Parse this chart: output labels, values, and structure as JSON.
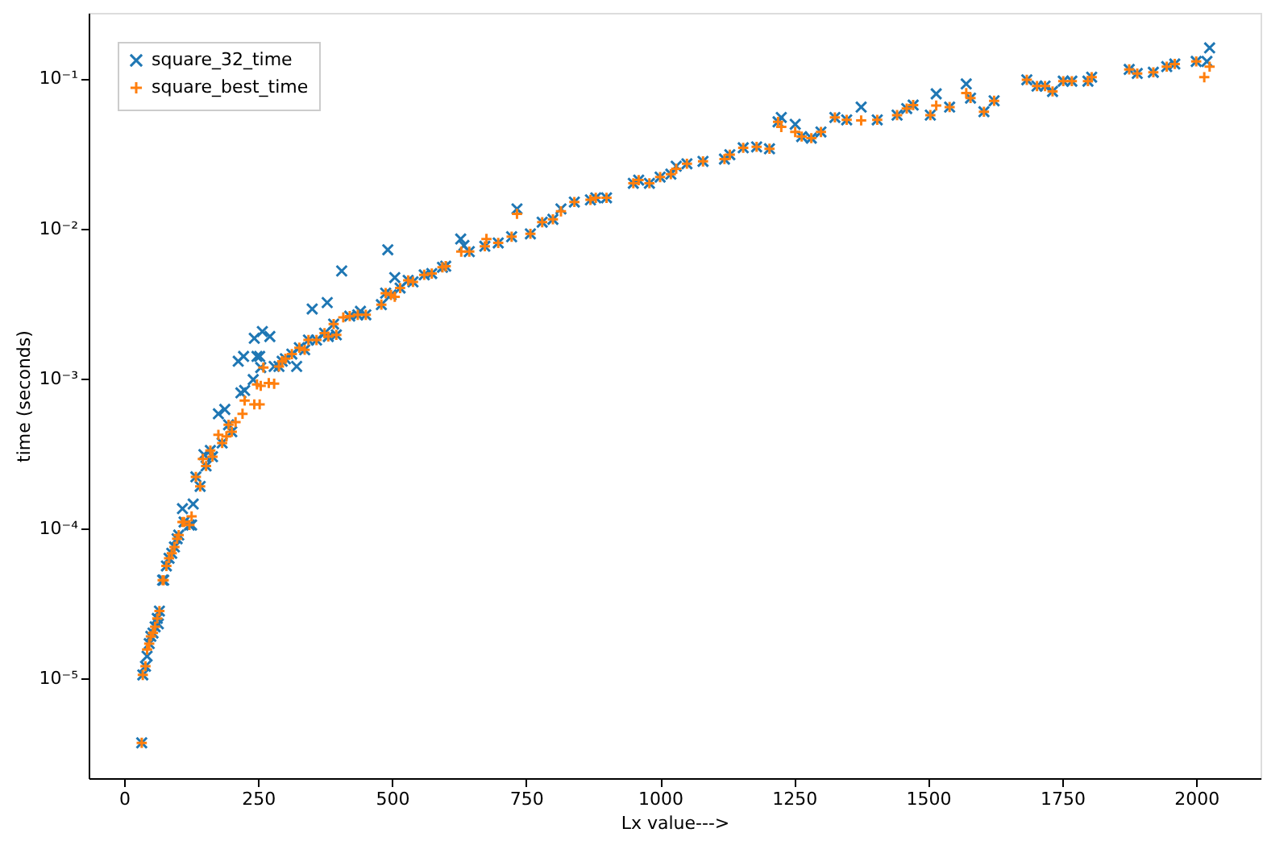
{
  "chart_data": {
    "type": "scatter",
    "xlabel": "Lx value--->",
    "ylabel": "time (seconds)",
    "log": "y",
    "grid": false,
    "legend": "top left",
    "xlim": [
      -66,
      2120
    ],
    "xticks": [
      0,
      250,
      500,
      750,
      1000,
      1250,
      1500,
      1750,
      2000
    ],
    "ylim": [
      2.15e-06,
      0.274
    ],
    "yticks": [
      {
        "value": 1e-05,
        "label": "10⁻⁵"
      },
      {
        "value": 0.0001,
        "label": "10⁻⁴"
      },
      {
        "value": 0.001,
        "label": "10⁻³"
      },
      {
        "value": 0.01,
        "label": "10⁻²"
      },
      {
        "value": 0.1,
        "label": "10⁻¹"
      }
    ],
    "series": [
      {
        "name": "square_32_time",
        "color": "#1f77b4",
        "marker": "x",
        "x": [
          33,
          35,
          40,
          43,
          47,
          50,
          54,
          58,
          62,
          64,
          66,
          72,
          74,
          79,
          84,
          89,
          94,
          99,
          102,
          109,
          112,
          122,
          126,
          129,
          134,
          142,
          149,
          153,
          161,
          165,
          176,
          183,
          188,
          195,
          201,
          213,
          218,
          223,
          225,
          241,
          243,
          248,
          253,
          255,
          258,
          272,
          280,
          289,
          295,
          301,
          313,
          322,
          327,
          337,
          344,
          351,
          359,
          374,
          379,
          381,
          391,
          396,
          406,
          421,
          436,
          441,
          451,
          480,
          488,
          492,
          498,
          505,
          515,
          530,
          539,
          560,
          574,
          594,
          600,
          628,
          634,
          644,
          673,
          698,
          723,
          733,
          758,
          780,
          800,
          815,
          840,
          870,
          880,
          900,
          950,
          960,
          980,
          1000,
          1020,
          1030,
          1050,
          1080,
          1120,
          1130,
          1155,
          1180,
          1204,
          1220,
          1226,
          1252,
          1264,
          1282,
          1300,
          1326,
          1348,
          1375,
          1405,
          1442,
          1460,
          1472,
          1504,
          1515,
          1540,
          1571,
          1579,
          1604,
          1623,
          1684,
          1703,
          1718,
          1732,
          1752,
          1768,
          1798,
          1805,
          1875,
          1890,
          1920,
          1945,
          1960,
          2000,
          2020,
          2025
        ],
        "values": [
          3.7e-06,
          1.05e-05,
          1.2e-05,
          1.4e-05,
          1.7e-05,
          1.9e-05,
          2e-05,
          2.2e-05,
          2.5e-05,
          2.3e-05,
          2.8e-05,
          4.5e-05,
          4.5e-05,
          5.6e-05,
          6.3e-05,
          6.8e-05,
          7.5e-05,
          8.5e-05,
          9e-05,
          0.000135,
          0.00011,
          0.000105,
          0.000105,
          0.000145,
          0.00022,
          0.00019,
          0.00031,
          0.00026,
          0.00033,
          0.0003,
          0.00058,
          0.00037,
          0.00062,
          0.00049,
          0.00044,
          0.0013,
          0.0008,
          0.0014,
          0.00083,
          0.00098,
          0.00185,
          0.0014,
          0.0014,
          0.00118,
          0.00205,
          0.0019,
          0.0012,
          0.0012,
          0.0013,
          0.00135,
          0.00145,
          0.0012,
          0.0016,
          0.00155,
          0.0018,
          0.0029,
          0.0018,
          0.002,
          0.0032,
          0.0019,
          0.0023,
          0.00195,
          0.0052,
          0.0026,
          0.00265,
          0.0028,
          0.00265,
          0.0031,
          0.0037,
          0.0072,
          0.0036,
          0.0047,
          0.004,
          0.0045,
          0.0044,
          0.0049,
          0.005,
          0.0055,
          0.0056,
          0.0085,
          0.0077,
          0.007,
          0.0076,
          0.008,
          0.0088,
          0.0135,
          0.0092,
          0.011,
          0.0115,
          0.0135,
          0.015,
          0.0155,
          0.016,
          0.016,
          0.02,
          0.021,
          0.02,
          0.022,
          0.023,
          0.026,
          0.027,
          0.028,
          0.029,
          0.031,
          0.0345,
          0.035,
          0.034,
          0.0514,
          0.055,
          0.0495,
          0.041,
          0.04,
          0.044,
          0.055,
          0.053,
          0.0645,
          0.053,
          0.057,
          0.063,
          0.0665,
          0.057,
          0.079,
          0.0645,
          0.092,
          0.074,
          0.06,
          0.071,
          0.098,
          0.089,
          0.089,
          0.082,
          0.096,
          0.096,
          0.096,
          0.102,
          0.115,
          0.108,
          0.11,
          0.12,
          0.125,
          0.13,
          0.13,
          0.16
        ]
      },
      {
        "name": "square_best_time",
        "color": "#ff7f0e",
        "marker": "cross",
        "x": [
          33,
          35,
          40,
          43,
          47,
          50,
          54,
          58,
          62,
          66,
          72,
          74,
          79,
          84,
          89,
          94,
          99,
          102,
          109,
          112,
          122,
          126,
          134,
          142,
          147,
          153,
          161,
          165,
          176,
          183,
          191,
          195,
          201,
          208,
          221,
          225,
          243,
          248,
          253,
          255,
          260,
          270,
          280,
          289,
          295,
          301,
          313,
          327,
          337,
          344,
          359,
          374,
          381,
          391,
          396,
          409,
          421,
          436,
          451,
          480,
          488,
          498,
          505,
          515,
          530,
          539,
          560,
          574,
          594,
          600,
          629,
          644,
          673,
          676,
          698,
          723,
          733,
          758,
          780,
          800,
          815,
          840,
          870,
          880,
          900,
          950,
          960,
          980,
          1000,
          1020,
          1030,
          1050,
          1080,
          1120,
          1130,
          1155,
          1180,
          1204,
          1220,
          1226,
          1252,
          1264,
          1282,
          1300,
          1326,
          1348,
          1375,
          1405,
          1442,
          1460,
          1472,
          1504,
          1515,
          1540,
          1571,
          1579,
          1604,
          1623,
          1684,
          1703,
          1718,
          1732,
          1752,
          1768,
          1798,
          1805,
          1875,
          1890,
          1920,
          1945,
          1960,
          2000,
          2015,
          2025
        ],
        "values": [
          3.7e-06,
          1.05e-05,
          1.2e-05,
          1.55e-05,
          1.7e-05,
          1.9e-05,
          2e-05,
          2.2e-05,
          2.5e-05,
          2.8e-05,
          4.5e-05,
          4.5e-05,
          5.6e-05,
          6.3e-05,
          6.8e-05,
          7.5e-05,
          8.5e-05,
          9e-05,
          0.00011,
          0.00011,
          0.000105,
          0.00012,
          0.00022,
          0.00019,
          0.00029,
          0.00026,
          0.00033,
          0.0003,
          0.00042,
          0.00037,
          0.00041,
          0.00049,
          0.00044,
          0.00051,
          0.00058,
          0.00071,
          0.00067,
          0.00091,
          0.00067,
          0.00089,
          0.00118,
          0.00093,
          0.00092,
          0.0012,
          0.0013,
          0.00135,
          0.00145,
          0.0016,
          0.00155,
          0.0018,
          0.0018,
          0.002,
          0.0019,
          0.0023,
          0.00195,
          0.00255,
          0.0026,
          0.00265,
          0.00265,
          0.0031,
          0.0037,
          0.0036,
          0.0035,
          0.004,
          0.0045,
          0.0044,
          0.0049,
          0.005,
          0.0055,
          0.0056,
          0.007,
          0.007,
          0.0076,
          0.0085,
          0.008,
          0.0088,
          0.0125,
          0.0092,
          0.011,
          0.0115,
          0.013,
          0.015,
          0.0155,
          0.016,
          0.016,
          0.02,
          0.021,
          0.02,
          0.022,
          0.023,
          0.025,
          0.027,
          0.028,
          0.029,
          0.031,
          0.0345,
          0.035,
          0.034,
          0.0514,
          0.0475,
          0.044,
          0.041,
          0.04,
          0.044,
          0.055,
          0.053,
          0.0525,
          0.053,
          0.057,
          0.063,
          0.0665,
          0.057,
          0.066,
          0.0645,
          0.08,
          0.074,
          0.06,
          0.071,
          0.098,
          0.089,
          0.089,
          0.082,
          0.096,
          0.096,
          0.096,
          0.102,
          0.115,
          0.108,
          0.11,
          0.12,
          0.125,
          0.13,
          0.102,
          0.12
        ]
      }
    ]
  }
}
